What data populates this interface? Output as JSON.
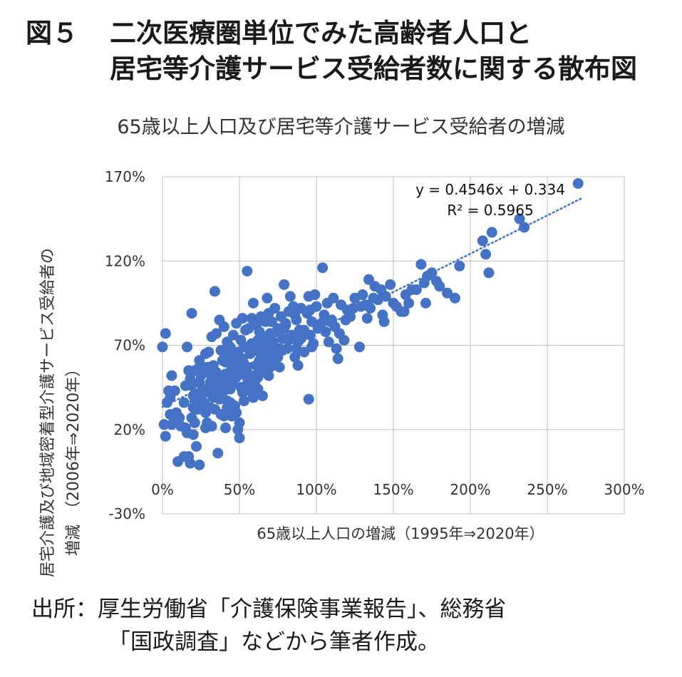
{
  "figure": {
    "number": "図５",
    "title_line1": "二次医療圏単位でみた高齢者人口と",
    "title_line2": "居宅等介護サービス受給者数に関する散布図"
  },
  "source": {
    "line1": "出所：厚生労働省「介護保険事業報告」、総務省",
    "line2": "「国政調査」などから筆者作成。"
  },
  "chart_data": {
    "type": "scatter",
    "title": "65歳以上人口及び居宅等介護サービス受給者の増減",
    "xlabel": "65歳以上人口の増減（1995年⇒2020年）",
    "ylabel_line1": "居宅介護及び地域密着型介護サービス受給者の",
    "ylabel_line2": "増減　（2006年⇒2020年）",
    "xlim": [
      0,
      3.0
    ],
    "ylim": [
      -0.3,
      1.7
    ],
    "xticks": [
      "0%",
      "50%",
      "100%",
      "150%",
      "200%",
      "250%",
      "300%"
    ],
    "yticks": [
      "170%",
      "120%",
      "70%",
      "20%",
      "-30%"
    ],
    "grid": true,
    "point_color": "#4472C4",
    "trendline": {
      "slope": 0.4546,
      "intercept": 0.334,
      "style": "dotted",
      "equation_label": "y = 0.4546x + 0.334",
      "r2_label": "R² = 0.5965"
    },
    "x": [
      0.0,
      0.01,
      0.02,
      0.02,
      0.04,
      0.05,
      0.06,
      0.06,
      0.1,
      0.12,
      0.14,
      0.15,
      0.15,
      0.16,
      0.17,
      0.17,
      0.18,
      0.18,
      0.19,
      0.19,
      0.2,
      0.2,
      0.21,
      0.21,
      0.22,
      0.22,
      0.23,
      0.23,
      0.24,
      0.24,
      0.25,
      0.25,
      0.26,
      0.26,
      0.27,
      0.27,
      0.28,
      0.28,
      0.29,
      0.29,
      0.3,
      0.3,
      0.31,
      0.31,
      0.32,
      0.32,
      0.33,
      0.33,
      0.34,
      0.34,
      0.35,
      0.35,
      0.36,
      0.36,
      0.37,
      0.37,
      0.38,
      0.38,
      0.39,
      0.39,
      0.4,
      0.4,
      0.41,
      0.41,
      0.42,
      0.42,
      0.43,
      0.43,
      0.44,
      0.44,
      0.45,
      0.45,
      0.46,
      0.46,
      0.47,
      0.47,
      0.48,
      0.48,
      0.49,
      0.49,
      0.5,
      0.5,
      0.51,
      0.51,
      0.52,
      0.52,
      0.53,
      0.53,
      0.54,
      0.54,
      0.55,
      0.55,
      0.56,
      0.56,
      0.57,
      0.57,
      0.58,
      0.58,
      0.59,
      0.59,
      0.6,
      0.6,
      0.61,
      0.61,
      0.62,
      0.62,
      0.63,
      0.63,
      0.64,
      0.64,
      0.65,
      0.65,
      0.66,
      0.66,
      0.67,
      0.67,
      0.68,
      0.68,
      0.69,
      0.69,
      0.7,
      0.7,
      0.71,
      0.72,
      0.73,
      0.74,
      0.75,
      0.76,
      0.77,
      0.78,
      0.79,
      0.8,
      0.81,
      0.82,
      0.83,
      0.84,
      0.85,
      0.86,
      0.87,
      0.88,
      0.89,
      0.9,
      0.92,
      0.94,
      0.95,
      0.96,
      0.97,
      0.98,
      1.0,
      1.02,
      1.04,
      1.05,
      1.06,
      1.07,
      1.08,
      1.1,
      1.12,
      1.14,
      1.16,
      1.18,
      1.2,
      1.22,
      1.25,
      1.28,
      1.3,
      1.32,
      1.34,
      1.35,
      1.38,
      1.4,
      1.42,
      1.44,
      1.45,
      1.48,
      1.5,
      1.52,
      1.55,
      1.58,
      1.6,
      1.62,
      1.65,
      1.68,
      1.7,
      1.72,
      1.75,
      1.8,
      1.85,
      1.9,
      1.93,
      2.08,
      2.1,
      2.12,
      2.14,
      2.32,
      2.35,
      2.7,
      0.03,
      0.08,
      0.11,
      0.16,
      0.2,
      0.28,
      0.33,
      0.38,
      0.44,
      0.5,
      0.55,
      0.62,
      0.68,
      0.72,
      0.78,
      0.83,
      0.88,
      0.92,
      0.97,
      1.03,
      0.36,
      0.42,
      0.48,
      0.53,
      0.58,
      0.64,
      0.7,
      0.76,
      0.82,
      0.86,
      0.91,
      0.96,
      1.01,
      1.09,
      1.13,
      1.24,
      1.33,
      1.43,
      1.57,
      1.71,
      0.09,
      0.14,
      0.19,
      0.24,
      0.31,
      0.35,
      0.41,
      0.47,
      0.52,
      0.57,
      0.63,
      0.69,
      0.74,
      0.8,
      0.87,
      0.93,
      0.99,
      1.11,
      1.19,
      1.29,
      0.05,
      0.1,
      0.21,
      0.27,
      0.34,
      0.4,
      0.45,
      0.51,
      0.56,
      0.61,
      0.66,
      0.71,
      0.75,
      0.79,
      0.85,
      0.9,
      0.95,
      1.15,
      1.37,
      1.78
    ],
    "y": [
      0.69,
      0.23,
      0.16,
      0.77,
      0.43,
      0.39,
      0.52,
      0.23,
      0.01,
      0.22,
      0.04,
      0.46,
      0.21,
      0.69,
      0.04,
      0.55,
      0.0,
      0.5,
      0.89,
      0.27,
      0.4,
      0.17,
      0.24,
      0.55,
      0.1,
      0.41,
      0.32,
      0.56,
      -0.01,
      0.48,
      0.38,
      0.52,
      0.32,
      0.44,
      0.56,
      0.36,
      0.3,
      0.65,
      0.24,
      0.57,
      0.42,
      0.66,
      0.33,
      0.53,
      0.22,
      0.75,
      0.44,
      0.58,
      0.32,
      1.02,
      0.54,
      0.77,
      0.06,
      0.46,
      0.85,
      0.38,
      0.67,
      0.29,
      0.61,
      0.48,
      0.81,
      0.43,
      0.21,
      0.6,
      0.33,
      0.72,
      0.52,
      0.64,
      0.44,
      0.69,
      0.28,
      0.56,
      0.76,
      0.49,
      0.62,
      0.34,
      0.83,
      0.51,
      0.66,
      0.2,
      0.15,
      0.58,
      0.73,
      0.45,
      0.86,
      0.62,
      0.37,
      0.69,
      0.79,
      0.52,
      1.14,
      0.57,
      0.43,
      0.8,
      0.66,
      0.5,
      0.71,
      0.86,
      0.39,
      0.95,
      0.67,
      0.48,
      0.82,
      0.58,
      0.73,
      0.44,
      0.61,
      0.78,
      0.54,
      0.87,
      0.69,
      0.4,
      0.75,
      0.56,
      0.84,
      0.64,
      0.98,
      0.71,
      0.52,
      0.89,
      0.77,
      0.6,
      0.84,
      0.72,
      0.92,
      0.65,
      0.8,
      0.57,
      0.87,
      0.74,
      1.06,
      0.82,
      0.68,
      0.9,
      0.99,
      0.76,
      0.93,
      0.63,
      0.85,
      0.72,
      0.79,
      0.92,
      0.66,
      0.89,
      0.99,
      0.76,
      0.84,
      0.71,
      0.93,
      0.81,
      1.16,
      0.88,
      0.78,
      0.95,
      0.72,
      0.85,
      0.81,
      0.62,
      0.94,
      0.73,
      0.91,
      0.87,
      0.98,
      0.69,
      1.0,
      0.94,
      1.09,
      0.92,
      1.05,
      0.97,
      1.03,
      0.84,
      0.99,
      1.06,
      0.95,
      0.93,
      0.9,
      1.0,
      0.95,
      1.03,
      1.03,
      1.18,
      1.07,
      1.11,
      1.13,
      1.05,
      1.01,
      0.98,
      1.17,
      1.32,
      1.24,
      1.13,
      1.37,
      1.45,
      1.4,
      1.66,
      0.36,
      0.43,
      0.27,
      0.18,
      0.33,
      0.21,
      0.39,
      0.46,
      0.36,
      0.24,
      0.47,
      0.51,
      0.64,
      0.59,
      0.67,
      0.75,
      0.58,
      0.79,
      0.69,
      0.83,
      0.49,
      0.37,
      0.3,
      0.59,
      0.52,
      0.63,
      0.57,
      0.68,
      0.73,
      0.88,
      0.76,
      0.91,
      0.8,
      0.84,
      0.68,
      0.92,
      0.86,
      0.88,
      0.9,
      0.95,
      0.3,
      0.36,
      0.46,
      0.61,
      0.48,
      0.41,
      0.53,
      0.59,
      0.42,
      0.65,
      0.55,
      0.7,
      0.78,
      0.83,
      0.68,
      0.77,
      1.0,
      0.98,
      0.85,
      0.93,
      0.29,
      0.25,
      0.37,
      0.43,
      0.49,
      0.28,
      0.47,
      0.55,
      0.5,
      0.58,
      0.62,
      0.69,
      0.63,
      0.8,
      0.91,
      0.74,
      0.38,
      0.77,
      0.98,
      1.08
    ]
  }
}
